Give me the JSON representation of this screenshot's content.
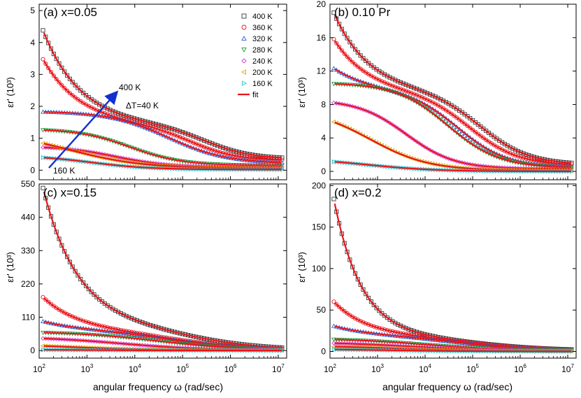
{
  "figure": {
    "xlabel_left": "angular frequency ω (rad/sec)",
    "xlabel_right": "angular frequency ω (rad/sec)",
    "fit_color": "#e8141a"
  },
  "series_styles": [
    {
      "name": "400 K",
      "marker": "square",
      "color": "#3a3a3a"
    },
    {
      "name": "360 K",
      "marker": "circle",
      "color": "#e8141a"
    },
    {
      "name": "320 K",
      "marker": "triangle-up",
      "color": "#2a5fd6"
    },
    {
      "name": "280 K",
      "marker": "triangle-down",
      "color": "#1a9a3a"
    },
    {
      "name": "240 K",
      "marker": "diamond",
      "color": "#d03ad6"
    },
    {
      "name": "200 K",
      "marker": "triangle-left",
      "color": "#e0a000"
    },
    {
      "name": "160 K",
      "marker": "triangle-right",
      "color": "#19c2d0"
    }
  ],
  "legend": {
    "fit_label": "fit"
  },
  "chart_data": [
    {
      "type": "scatter",
      "panel": "a",
      "title": "(a) x=0.05",
      "xscale": "log",
      "xlim": [
        100,
        15000000
      ],
      "ylim": [
        -0.3,
        5.2
      ],
      "yticks": [
        0,
        1,
        2,
        3,
        4,
        5
      ],
      "ylabel": "εr' (10³)",
      "annotations": {
        "high": "400 K",
        "step": "ΔT=40 K",
        "low": "160 K"
      },
      "series": [
        {
          "name": "400 K",
          "params": {
            "e_inf": 0.35,
            "a": 3.3,
            "k1": 0.55,
            "b": 1.05,
            "w2": 300000,
            "n2": 0.9
          }
        },
        {
          "name": "360 K",
          "params": {
            "e_inf": 0.3,
            "a": 2.3,
            "k1": 0.55,
            "b": 1.1,
            "w2": 150000,
            "n2": 0.9
          }
        },
        {
          "name": "320 K",
          "params": {
            "e_inf": 0.2,
            "a": 0.0,
            "k1": 0.6,
            "b": 1.65,
            "w2": 50000,
            "n2": 0.7
          }
        },
        {
          "name": "280 K",
          "params": {
            "e_inf": 0.15,
            "a": 0.0,
            "k1": 0.6,
            "b": 1.15,
            "w2": 8000,
            "n2": 0.8
          }
        },
        {
          "name": "240 K",
          "params": {
            "e_inf": 0.1,
            "a": 0.0,
            "k1": 0.6,
            "b": 0.65,
            "w2": 4000,
            "n2": 0.8
          }
        },
        {
          "name": "200 K",
          "params": {
            "e_inf": 0.05,
            "a": 0.0,
            "k1": 0.6,
            "b": 1.2,
            "w2": 400,
            "n2": 0.55
          }
        },
        {
          "name": "160 K",
          "params": {
            "e_inf": 0.02,
            "a": 0.0,
            "k1": 0.6,
            "b": 0.45,
            "w2": 1200,
            "n2": 0.7
          }
        }
      ]
    },
    {
      "type": "scatter",
      "panel": "b",
      "title": "(b) 0.10 Pr",
      "xscale": "log",
      "xlim": [
        100,
        15000000
      ],
      "ylim": [
        -1,
        20
      ],
      "yticks": [
        0,
        4,
        8,
        12,
        16,
        20
      ],
      "ylabel": "εr' (10³)",
      "series": [
        {
          "name": "400 K",
          "params": {
            "e_inf": 0.8,
            "a": 10.5,
            "k1": 0.6,
            "b": 8.8,
            "w2": 150000,
            "n2": 0.85
          }
        },
        {
          "name": "360 K",
          "params": {
            "e_inf": 0.7,
            "a": 7.2,
            "k1": 0.6,
            "b": 8.7,
            "w2": 90000,
            "n2": 0.85
          }
        },
        {
          "name": "320 K",
          "params": {
            "e_inf": 0.5,
            "a": 3.0,
            "k1": 0.6,
            "b": 9.2,
            "w2": 50000,
            "n2": 0.85
          }
        },
        {
          "name": "280 K",
          "params": {
            "e_inf": 0.4,
            "a": 0.0,
            "k1": 0.6,
            "b": 10.2,
            "w2": 30000,
            "n2": 0.8
          }
        },
        {
          "name": "240 K",
          "params": {
            "e_inf": 0.3,
            "a": 0.0,
            "k1": 0.6,
            "b": 8.3,
            "w2": 4000,
            "n2": 0.85
          }
        },
        {
          "name": "200 K",
          "params": {
            "e_inf": 0.1,
            "a": 0.0,
            "k1": 0.6,
            "b": 7.5,
            "w2": 700,
            "n2": 0.7
          }
        },
        {
          "name": "160 K",
          "params": {
            "e_inf": 0.0,
            "a": 0.0,
            "k1": 0.6,
            "b": 1.6,
            "w2": 600,
            "n2": 0.6
          }
        }
      ]
    },
    {
      "type": "scatter",
      "panel": "c",
      "title": "(c) x=0.15",
      "xscale": "log",
      "xlim": [
        100,
        15000000
      ],
      "ylim": [
        -25,
        550
      ],
      "yticks": [
        0,
        110,
        220,
        330,
        440,
        550
      ],
      "ylabel": "εr' (10³)",
      "series": [
        {
          "name": "400 K",
          "params": {
            "e_inf": 2,
            "a": 500,
            "k1": 0.6,
            "b": 90,
            "w2": 100000,
            "n2": 0.5
          }
        },
        {
          "name": "360 K",
          "params": {
            "e_inf": 2,
            "a": 120,
            "k1": 0.6,
            "b": 70,
            "w2": 60000,
            "n2": 0.5
          }
        },
        {
          "name": "320 K",
          "params": {
            "e_inf": 1,
            "a": 30,
            "k1": 0.6,
            "b": 72,
            "w2": 50000,
            "n2": 0.5
          }
        },
        {
          "name": "280 K",
          "params": {
            "e_inf": 1,
            "a": 0,
            "k1": 0.6,
            "b": 62,
            "w2": 30000,
            "n2": 0.5
          }
        },
        {
          "name": "240 K",
          "params": {
            "e_inf": 1,
            "a": 0,
            "k1": 0.6,
            "b": 45,
            "w2": 5000,
            "n2": 0.5
          }
        },
        {
          "name": "200 K",
          "params": {
            "e_inf": 0.5,
            "a": 0,
            "k1": 0.6,
            "b": 22,
            "w2": 500,
            "n2": 0.5
          }
        },
        {
          "name": "160 K",
          "params": {
            "e_inf": 0.2,
            "a": 0,
            "k1": 0.6,
            "b": 4,
            "w2": 300,
            "n2": 0.5
          }
        }
      ]
    },
    {
      "type": "scatter",
      "panel": "d",
      "title": "(d) x=0.2",
      "xscale": "log",
      "xlim": [
        100,
        15000000
      ],
      "ylim": [
        -8,
        202
      ],
      "yticks": [
        0,
        50,
        100,
        150,
        200
      ],
      "ylabel": "εr' (10³)",
      "series": [
        {
          "name": "400 K",
          "params": {
            "e_inf": 1,
            "a": 190,
            "k1": 0.75,
            "b": 18,
            "w2": 100000,
            "n2": 0.5
          }
        },
        {
          "name": "360 K",
          "params": {
            "e_inf": 1,
            "a": 45,
            "k1": 0.65,
            "b": 20,
            "w2": 60000,
            "n2": 0.5
          }
        },
        {
          "name": "320 K",
          "params": {
            "e_inf": 1,
            "a": 12,
            "k1": 0.6,
            "b": 20,
            "w2": 40000,
            "n2": 0.5
          }
        },
        {
          "name": "280 K",
          "params": {
            "e_inf": 1,
            "a": 0,
            "k1": 0.6,
            "b": 15,
            "w2": 10000,
            "n2": 0.5
          }
        },
        {
          "name": "240 K",
          "params": {
            "e_inf": 0.5,
            "a": 0,
            "k1": 0.6,
            "b": 11,
            "w2": 5000,
            "n2": 0.5
          }
        },
        {
          "name": "200 K",
          "params": {
            "e_inf": 0.3,
            "a": 0,
            "k1": 0.6,
            "b": 7,
            "w2": 2000,
            "n2": 0.5
          }
        },
        {
          "name": "160 K",
          "params": {
            "e_inf": 0.2,
            "a": 0,
            "k1": 0.6,
            "b": 3,
            "w2": 1000,
            "n2": 0.5
          }
        }
      ]
    }
  ]
}
